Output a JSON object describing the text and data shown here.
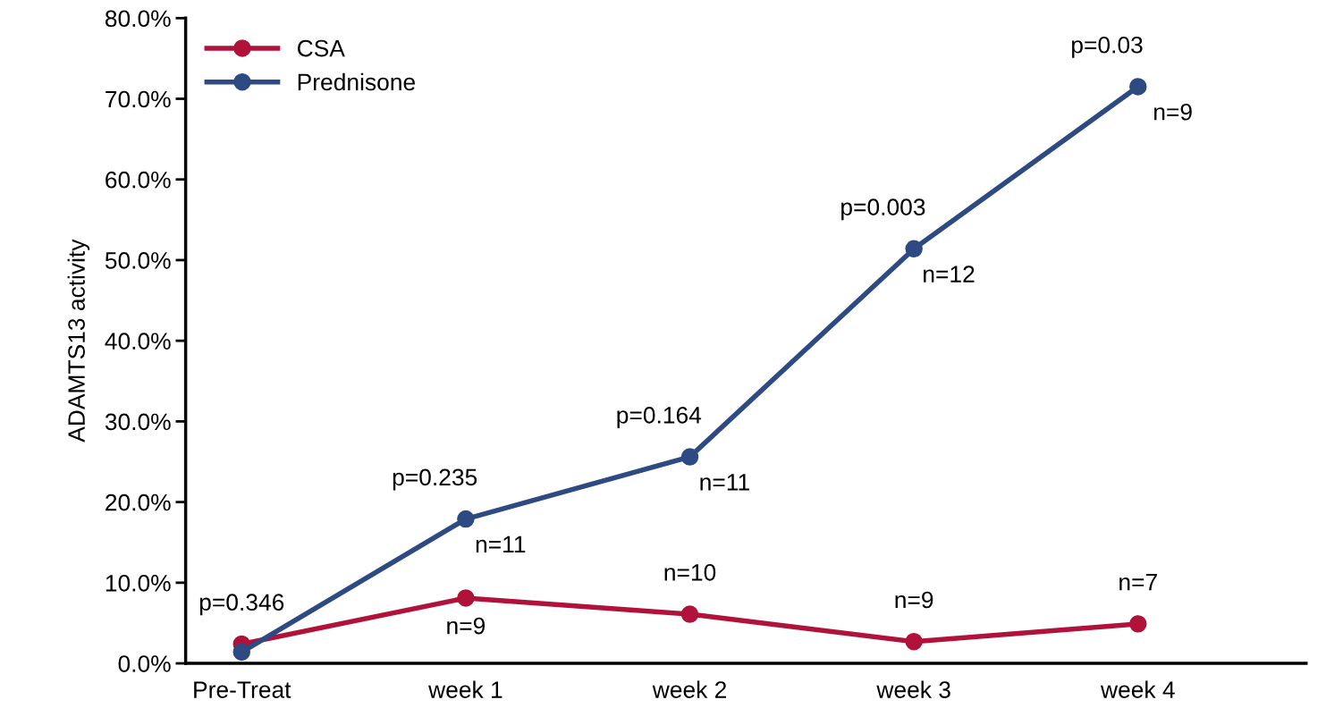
{
  "chart_data": {
    "type": "line",
    "ylabel": "ADAMTS13 activity",
    "categories": [
      "Pre-Treat",
      "week 1",
      "week 2",
      "week 3",
      "week 4"
    ],
    "series": [
      {
        "name": "CSA",
        "color": "#b0123a",
        "values": [
          2.4,
          8.1,
          6.1,
          2.7,
          4.9
        ]
      },
      {
        "name": "Prednisone",
        "color": "#2e4a83",
        "values": [
          1.4,
          17.9,
          25.6,
          51.4,
          71.5
        ]
      }
    ],
    "ylim": [
      0,
      80
    ],
    "yticks": [
      {
        "value": 0,
        "label": "0.0%"
      },
      {
        "value": 10,
        "label": "10.0%"
      },
      {
        "value": 20,
        "label": "20.0%"
      },
      {
        "value": 30,
        "label": "30.0%"
      },
      {
        "value": 40,
        "label": "40.0%"
      },
      {
        "value": 50,
        "label": "50.0%"
      },
      {
        "value": 60,
        "label": "60.0%"
      },
      {
        "value": 70,
        "label": "70.0%"
      },
      {
        "value": 80,
        "label": "80.0%"
      }
    ],
    "grid": false,
    "legend": "top left",
    "marker": "circle",
    "line_style": "solid",
    "annotations": [
      {
        "text": "p=0.346",
        "x": "Pre-Treat",
        "y": 2.4
      },
      {
        "text": "p=0.235",
        "x": "week 1",
        "y": 17.9
      },
      {
        "text": "n=11",
        "x": "week 1",
        "y": 17.9
      },
      {
        "text": "p=0.164",
        "x": "week 2",
        "y": 25.6
      },
      {
        "text": "n=11",
        "x": "week 2",
        "y": 25.6
      },
      {
        "text": "p=0.003",
        "x": "week 3",
        "y": 51.4
      },
      {
        "text": "n=12",
        "x": "week 3",
        "y": 51.4
      },
      {
        "text": "p=0.03",
        "x": "week 4",
        "y": 71.5
      },
      {
        "text": "n=9",
        "x": "week 4",
        "y": 71.5
      },
      {
        "text": "n=9",
        "x": "week 1",
        "y": 8.1
      },
      {
        "text": "n=10",
        "x": "week 2",
        "y": 6.1
      },
      {
        "text": "n=9",
        "x": "week 3",
        "y": 2.7
      },
      {
        "text": "n=7",
        "x": "week 4",
        "y": 4.9
      }
    ]
  }
}
